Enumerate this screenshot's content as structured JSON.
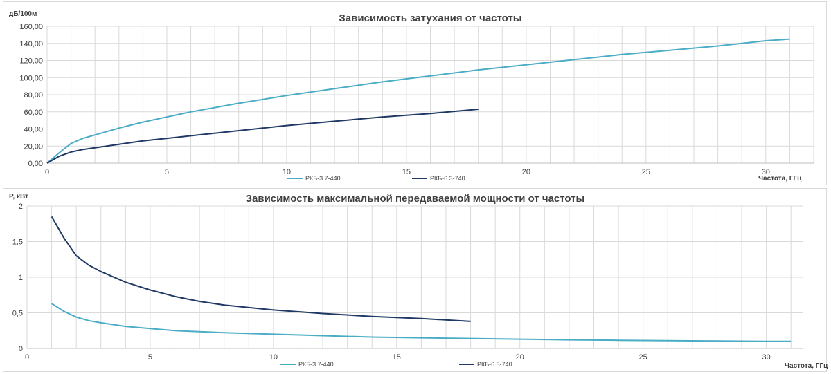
{
  "colors": {
    "series_light": "#4bacc6",
    "series_dark": "#1f3864",
    "grid": "#d9d9d9",
    "text": "#404040"
  },
  "chart_data": [
    {
      "type": "line",
      "title": "Зависимость затухания от частоты",
      "ylabel": "дБ/100м",
      "xlabel": "Частота, ГГц",
      "xlim": [
        0,
        32
      ],
      "ylim": [
        0,
        160
      ],
      "x_ticks": [
        "0",
        "5",
        "10",
        "15",
        "20",
        "25",
        "30"
      ],
      "y_ticks": [
        "0,00",
        "20,00",
        "40,00",
        "60,00",
        "80,00",
        "100,00",
        "120,00",
        "140,00",
        "160,00"
      ],
      "grid": "both",
      "legend": "bottom",
      "series": [
        {
          "name": "РКБ-3.7-440",
          "color": "#4bacc6",
          "points": [
            [
              0,
              0
            ],
            [
              0.5,
              12
            ],
            [
              1,
              23
            ],
            [
              1.5,
              29
            ],
            [
              2,
              33
            ],
            [
              3,
              41
            ],
            [
              4,
              48
            ],
            [
              5,
              54
            ],
            [
              6,
              60
            ],
            [
              8,
              70
            ],
            [
              10,
              79
            ],
            [
              12,
              87
            ],
            [
              14,
              95
            ],
            [
              16,
              102
            ],
            [
              18,
              109
            ],
            [
              20,
              115
            ],
            [
              22,
              121
            ],
            [
              24,
              127
            ],
            [
              26,
              132
            ],
            [
              28,
              137
            ],
            [
              30,
              143
            ],
            [
              31,
              145
            ]
          ]
        },
        {
          "name": "РКБ-6.3-740",
          "color": "#1f3864",
          "points": [
            [
              0,
              0
            ],
            [
              0.5,
              8
            ],
            [
              1,
              13
            ],
            [
              1.5,
              16
            ],
            [
              2,
              18
            ],
            [
              3,
              22
            ],
            [
              4,
              26
            ],
            [
              5,
              29
            ],
            [
              6,
              32
            ],
            [
              8,
              38
            ],
            [
              10,
              44
            ],
            [
              12,
              49
            ],
            [
              14,
              54
            ],
            [
              16,
              58
            ],
            [
              18,
              63
            ]
          ]
        }
      ]
    },
    {
      "type": "line",
      "title": "Зависимость максимальной передаваемой мощности от частоты",
      "ylabel": "P, кВт",
      "xlabel": "Частота, ГГц",
      "xlim": [
        0,
        31.5
      ],
      "ylim": [
        0,
        2
      ],
      "x_ticks": [
        "0",
        "5",
        "10",
        "15",
        "20",
        "25",
        "30"
      ],
      "y_ticks": [
        "0",
        "0,5",
        "1",
        "1,5",
        "2"
      ],
      "grid": "both",
      "legend": "bottom",
      "series": [
        {
          "name": "РКБ-3.7-440",
          "color": "#4bacc6",
          "points": [
            [
              1,
              0.63
            ],
            [
              1.5,
              0.52
            ],
            [
              2,
              0.44
            ],
            [
              2.5,
              0.39
            ],
            [
              3,
              0.36
            ],
            [
              4,
              0.31
            ],
            [
              5,
              0.28
            ],
            [
              6,
              0.25
            ],
            [
              8,
              0.22
            ],
            [
              10,
              0.2
            ],
            [
              12,
              0.18
            ],
            [
              14,
              0.16
            ],
            [
              16,
              0.15
            ],
            [
              18,
              0.14
            ],
            [
              20,
              0.13
            ],
            [
              22,
              0.12
            ],
            [
              24,
              0.115
            ],
            [
              26,
              0.11
            ],
            [
              28,
              0.105
            ],
            [
              30,
              0.1
            ],
            [
              31,
              0.1
            ]
          ]
        },
        {
          "name": "РКБ-6.3-740",
          "color": "#1f3864",
          "points": [
            [
              1,
              1.85
            ],
            [
              1.5,
              1.55
            ],
            [
              2,
              1.3
            ],
            [
              2.5,
              1.17
            ],
            [
              3,
              1.08
            ],
            [
              4,
              0.93
            ],
            [
              5,
              0.82
            ],
            [
              6,
              0.73
            ],
            [
              7,
              0.66
            ],
            [
              8,
              0.61
            ],
            [
              10,
              0.54
            ],
            [
              12,
              0.49
            ],
            [
              14,
              0.45
            ],
            [
              16,
              0.42
            ],
            [
              18,
              0.38
            ]
          ]
        }
      ]
    }
  ]
}
